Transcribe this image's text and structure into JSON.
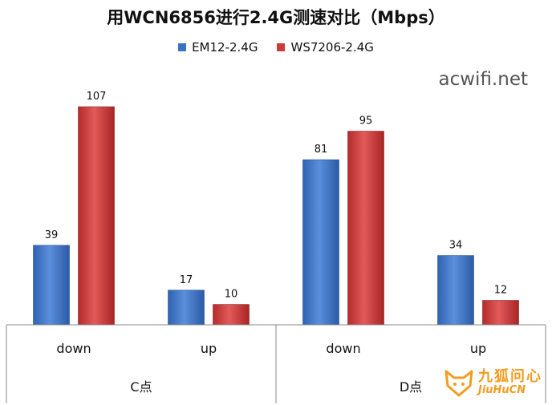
{
  "chart_data": {
    "type": "bar",
    "title": "用WCN6856进行2.4G测速对比（Mbps）",
    "groups": [
      {
        "label": "C点",
        "categories": [
          "down",
          "up"
        ]
      },
      {
        "label": "D点",
        "categories": [
          "down",
          "up"
        ]
      }
    ],
    "series": [
      {
        "name": "EM12-2.4G",
        "color": "#3a72c4",
        "values": [
          39,
          17,
          81,
          34
        ]
      },
      {
        "name": "WS7206-2.4G",
        "color": "#cc3b3b",
        "values": [
          107,
          10,
          95,
          12
        ]
      }
    ],
    "ylim": [
      0,
      120
    ],
    "grid": false,
    "legend": "top",
    "data_labels": true
  },
  "watermark": "acwifi.net",
  "logo": {
    "cn": "九狐问心",
    "en": "JiuHuCN"
  }
}
